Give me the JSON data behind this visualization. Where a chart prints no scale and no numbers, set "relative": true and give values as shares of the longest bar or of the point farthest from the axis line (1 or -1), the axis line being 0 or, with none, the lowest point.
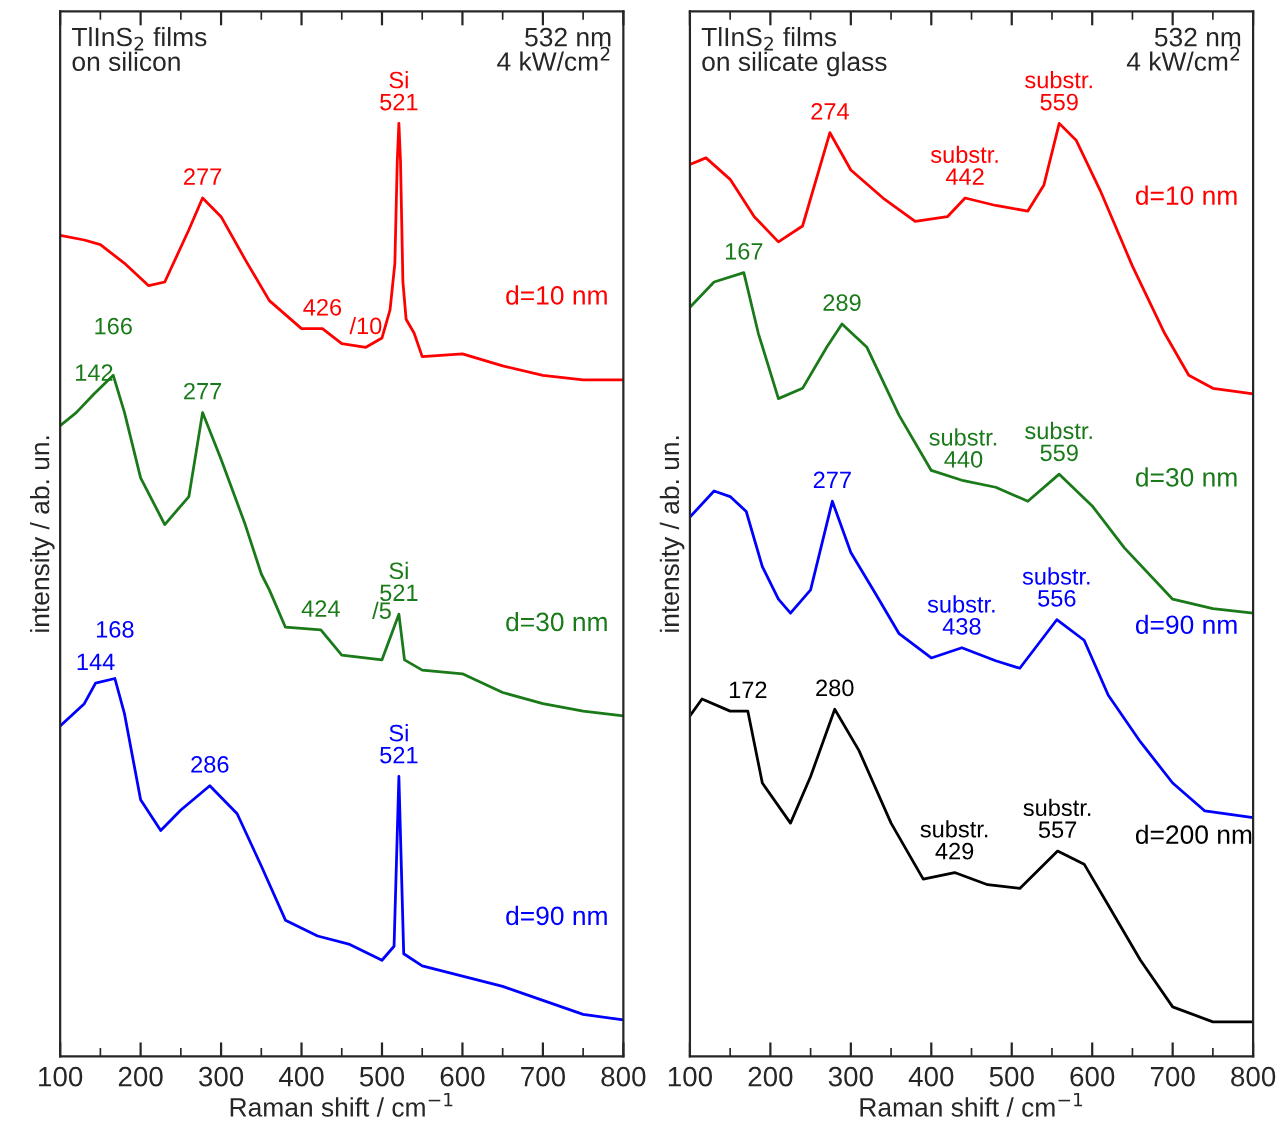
{
  "chart_data": [
    {
      "type": "line",
      "title": "TlInS$_{2}$ films\non silicon",
      "subtitle": "532 nm\n4 kW/cm$^{2}$",
      "xlabel": "Raman shift / cm$^{−1}$",
      "ylabel": "intensity / ab. un.",
      "relative": true,
      "xlim": [
        100,
        800
      ],
      "xticks": [
        100,
        200,
        300,
        400,
        500,
        600,
        700,
        800
      ],
      "grid": false,
      "legend": false,
      "tick_labels": "x",
      "series": [
        {
          "name": "d=10 nm",
          "color": "#ff0000",
          "x": [
            100,
            130,
            150,
            180,
            210,
            230,
            260,
            277,
            300,
            330,
            360,
            400,
            426,
            450,
            480,
            500,
            510,
            516,
            519,
            521,
            523,
            526,
            530,
            540,
            550,
            600,
            650,
            700,
            750,
            800
          ],
          "values": [
            0.88,
            0.875,
            0.87,
            0.85,
            0.826,
            0.83,
            0.886,
            0.92,
            0.9,
            0.854,
            0.81,
            0.78,
            0.78,
            0.764,
            0.76,
            0.77,
            0.8,
            0.85,
            0.96,
            1.0,
            0.96,
            0.83,
            0.79,
            0.775,
            0.75,
            0.753,
            0.74,
            0.73,
            0.725,
            0.725
          ]
        },
        {
          "name": "d=30 nm",
          "color": "#1a7a1a",
          "x": [
            100,
            120,
            142,
            166,
            180,
            200,
            230,
            260,
            277,
            300,
            330,
            350,
            360,
            380,
            424,
            450,
            500,
            515,
            521,
            528,
            550,
            600,
            650,
            700,
            750,
            800
          ],
          "values": [
            0.676,
            0.69,
            0.71,
            0.73,
            0.69,
            0.62,
            0.57,
            0.6,
            0.69,
            0.64,
            0.57,
            0.517,
            0.5,
            0.46,
            0.457,
            0.43,
            0.425,
            0.46,
            0.474,
            0.425,
            0.414,
            0.41,
            0.39,
            0.378,
            0.37,
            0.365
          ]
        },
        {
          "name": "d=90 nm",
          "color": "#0000ff",
          "x": [
            100,
            130,
            144,
            168,
            180,
            200,
            225,
            250,
            286,
            320,
            350,
            380,
            420,
            460,
            500,
            515,
            521,
            527,
            550,
            600,
            650,
            700,
            750,
            800
          ],
          "values": [
            0.354,
            0.378,
            0.4,
            0.405,
            0.367,
            0.275,
            0.242,
            0.264,
            0.29,
            0.26,
            0.204,
            0.146,
            0.129,
            0.12,
            0.103,
            0.118,
            0.3,
            0.11,
            0.097,
            0.086,
            0.075,
            0.06,
            0.045,
            0.039
          ]
        }
      ],
      "annotations": [
        {
          "text": "277",
          "x": 277,
          "y": 0.92
        },
        {
          "text": "Si\n521",
          "x": 521,
          "y": 1.0
        },
        {
          "text": "426",
          "x": 426,
          "y": 0.78
        },
        {
          "text": "/10",
          "x": 480,
          "y": 0.76
        },
        {
          "text": "142",
          "x": 142,
          "y": 0.71
        },
        {
          "text": "166",
          "x": 166,
          "y": 0.73
        },
        {
          "text": "277",
          "x": 277,
          "y": 0.69
        },
        {
          "text": "424",
          "x": 424,
          "y": 0.457
        },
        {
          "text": "Si\n521",
          "x": 521,
          "y": 0.474
        },
        {
          "text": "/5",
          "x": 500,
          "y": 0.425
        },
        {
          "text": "144",
          "x": 144,
          "y": 0.4
        },
        {
          "text": "168",
          "x": 168,
          "y": 0.405
        },
        {
          "text": "286",
          "x": 286,
          "y": 0.29
        },
        {
          "text": "Si\n521",
          "x": 521,
          "y": 0.3
        }
      ]
    },
    {
      "type": "line",
      "title": "TlInS$_{2}$ films\non silicate glass",
      "subtitle": "532 nm\n4 kW/cm$^{2}$",
      "xlabel": "Raman shift / cm$^{−1}$",
      "ylabel": "intensity / ab. un.",
      "relative": true,
      "xlim": [
        100,
        800
      ],
      "xticks": [
        100,
        200,
        300,
        400,
        500,
        600,
        700,
        800
      ],
      "grid": false,
      "legend": false,
      "tick_labels": "x",
      "series": [
        {
          "name": "d=10 nm",
          "color": "#ff0000",
          "x": [
            100,
            120,
            150,
            180,
            210,
            240,
            274,
            300,
            340,
            380,
            420,
            442,
            480,
            520,
            540,
            559,
            580,
            610,
            650,
            690,
            720,
            750,
            800
          ],
          "values": [
            0.956,
            0.963,
            0.94,
            0.9,
            0.873,
            0.89,
            0.99,
            0.95,
            0.92,
            0.895,
            0.9,
            0.92,
            0.912,
            0.906,
            0.934,
            1.0,
            0.982,
            0.928,
            0.847,
            0.775,
            0.73,
            0.716,
            0.71
          ]
        },
        {
          "name": "d=30 nm",
          "color": "#1a7a1a",
          "x": [
            100,
            130,
            167,
            185,
            210,
            240,
            270,
            289,
            320,
            360,
            400,
            440,
            480,
            520,
            559,
            600,
            640,
            700,
            750,
            800
          ],
          "values": [
            0.803,
            0.83,
            0.84,
            0.775,
            0.705,
            0.716,
            0.76,
            0.785,
            0.76,
            0.687,
            0.628,
            0.617,
            0.61,
            0.595,
            0.624,
            0.59,
            0.545,
            0.49,
            0.48,
            0.475
          ]
        },
        {
          "name": "d=90 nm",
          "color": "#0000ff",
          "x": [
            100,
            130,
            150,
            170,
            190,
            210,
            225,
            250,
            277,
            300,
            330,
            360,
            400,
            438,
            480,
            510,
            556,
            590,
            620,
            660,
            700,
            740,
            800
          ],
          "values": [
            0.578,
            0.606,
            0.6,
            0.584,
            0.525,
            0.49,
            0.475,
            0.5,
            0.595,
            0.54,
            0.497,
            0.453,
            0.427,
            0.438,
            0.424,
            0.416,
            0.468,
            0.446,
            0.387,
            0.337,
            0.293,
            0.263,
            0.256
          ]
        },
        {
          "name": "d=200 nm",
          "color": "#000000",
          "x": [
            100,
            115,
            150,
            172,
            190,
            225,
            250,
            280,
            310,
            350,
            390,
            429,
            470,
            510,
            557,
            590,
            620,
            660,
            700,
            750,
            800
          ],
          "values": [
            0.365,
            0.383,
            0.37,
            0.37,
            0.293,
            0.25,
            0.3,
            0.372,
            0.328,
            0.25,
            0.19,
            0.197,
            0.184,
            0.18,
            0.22,
            0.206,
            0.162,
            0.103,
            0.053,
            0.037,
            0.037
          ]
        }
      ],
      "annotations": [
        {
          "text": "274",
          "x": 274,
          "y": 0.99
        },
        {
          "text": "substr.\n442",
          "x": 442,
          "y": 0.92
        },
        {
          "text": "substr.\n559",
          "x": 559,
          "y": 1.0
        },
        {
          "text": "167",
          "x": 167,
          "y": 0.84
        },
        {
          "text": "289",
          "x": 289,
          "y": 0.785
        },
        {
          "text": "substr.\n440",
          "x": 440,
          "y": 0.617
        },
        {
          "text": "substr.\n559",
          "x": 559,
          "y": 0.624
        },
        {
          "text": "277",
          "x": 277,
          "y": 0.595
        },
        {
          "text": "substr.\n438",
          "x": 438,
          "y": 0.438
        },
        {
          "text": "substr.\n556",
          "x": 556,
          "y": 0.468
        },
        {
          "text": "172",
          "x": 172,
          "y": 0.37
        },
        {
          "text": "280",
          "x": 280,
          "y": 0.372
        },
        {
          "text": "substr.\n429",
          "x": 429,
          "y": 0.197
        },
        {
          "text": "substr.\n557",
          "x": 557,
          "y": 0.22
        }
      ]
    }
  ]
}
